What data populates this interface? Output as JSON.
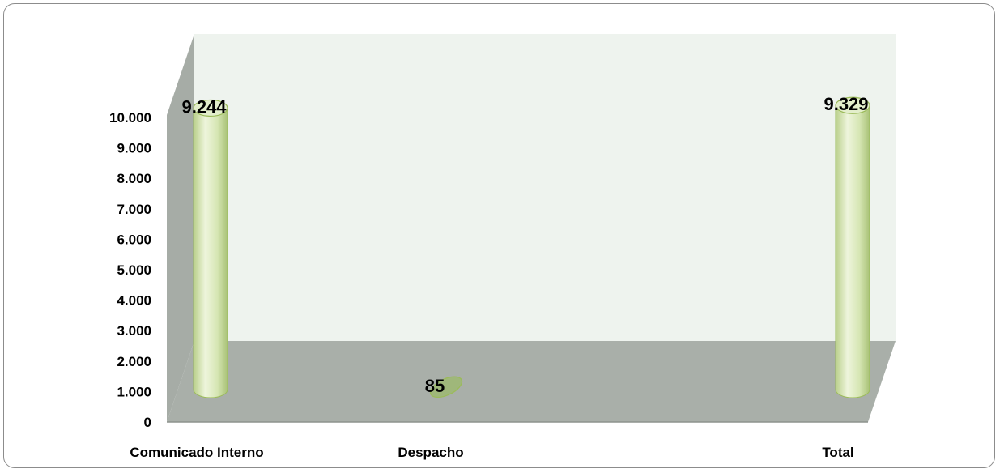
{
  "chart_data": {
    "type": "bar",
    "style": "3d-cylinder",
    "categories": [
      "Comunicado Interno",
      "Despacho",
      "Total"
    ],
    "values": [
      9244,
      85,
      9329
    ],
    "value_labels": [
      "9.244",
      "85",
      "9.329"
    ],
    "ylim": [
      0,
      10000
    ],
    "yticks": [
      0,
      1000,
      2000,
      3000,
      4000,
      5000,
      6000,
      7000,
      8000,
      9000,
      10000
    ],
    "ytick_labels": [
      "0",
      "1.000",
      "2.000",
      "3.000",
      "4.000",
      "5.000",
      "6.000",
      "7.000",
      "8.000",
      "9.000",
      "10.000"
    ],
    "title": "",
    "xlabel": "",
    "ylabel": "",
    "grid": false,
    "legend": "none",
    "colors": {
      "bar_fill": "#d8e6b8",
      "bar_edge": "#9bbb59",
      "back_wall": "#eef3ee",
      "side_wall": "#a6aca6",
      "floor": "#a9afa9"
    }
  }
}
